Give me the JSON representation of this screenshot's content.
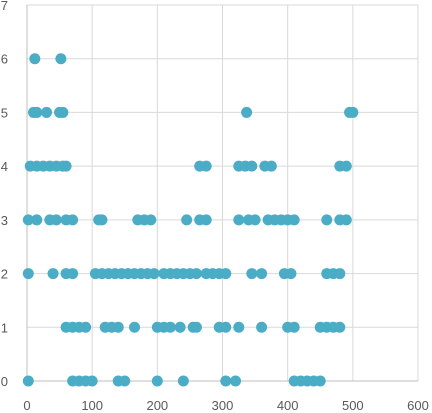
{
  "chart_data": {
    "type": "scatter",
    "title": "",
    "xlabel": "",
    "ylabel": "",
    "xlim": [
      0,
      600
    ],
    "ylim": [
      0,
      7
    ],
    "x_ticks": [
      "0",
      "100",
      "200",
      "300",
      "400",
      "500",
      "600"
    ],
    "y_ticks": [
      "0",
      "1",
      "2",
      "3",
      "4",
      "5",
      "6",
      "7"
    ],
    "grid": "vertical-and-horizontal",
    "legend": "none",
    "marker_color": "#4BACC6",
    "series": [
      {
        "points": [
          [
            2,
            0
          ],
          [
            70,
            0
          ],
          [
            80,
            0
          ],
          [
            90,
            0
          ],
          [
            100,
            0
          ],
          [
            140,
            0
          ],
          [
            150,
            0
          ],
          [
            200,
            0
          ],
          [
            240,
            0
          ],
          [
            305,
            0
          ],
          [
            320,
            0
          ],
          [
            410,
            0
          ],
          [
            420,
            0
          ],
          [
            430,
            0
          ],
          [
            440,
            0
          ],
          [
            450,
            0
          ],
          [
            60,
            1
          ],
          [
            70,
            1
          ],
          [
            80,
            1
          ],
          [
            90,
            1
          ],
          [
            120,
            1
          ],
          [
            130,
            1
          ],
          [
            140,
            1
          ],
          [
            165,
            1
          ],
          [
            200,
            1
          ],
          [
            210,
            1
          ],
          [
            220,
            1
          ],
          [
            235,
            1
          ],
          [
            255,
            1
          ],
          [
            260,
            1
          ],
          [
            295,
            1
          ],
          [
            305,
            1
          ],
          [
            325,
            1
          ],
          [
            360,
            1
          ],
          [
            400,
            1
          ],
          [
            410,
            1
          ],
          [
            450,
            1
          ],
          [
            460,
            1
          ],
          [
            470,
            1
          ],
          [
            480,
            1
          ],
          [
            2,
            2
          ],
          [
            40,
            2
          ],
          [
            60,
            2
          ],
          [
            70,
            2
          ],
          [
            105,
            2
          ],
          [
            115,
            2
          ],
          [
            125,
            2
          ],
          [
            135,
            2
          ],
          [
            145,
            2
          ],
          [
            155,
            2
          ],
          [
            165,
            2
          ],
          [
            175,
            2
          ],
          [
            185,
            2
          ],
          [
            195,
            2
          ],
          [
            210,
            2
          ],
          [
            220,
            2
          ],
          [
            230,
            2
          ],
          [
            240,
            2
          ],
          [
            250,
            2
          ],
          [
            260,
            2
          ],
          [
            275,
            2
          ],
          [
            285,
            2
          ],
          [
            295,
            2
          ],
          [
            305,
            2
          ],
          [
            345,
            2
          ],
          [
            360,
            2
          ],
          [
            395,
            2
          ],
          [
            405,
            2
          ],
          [
            460,
            2
          ],
          [
            470,
            2
          ],
          [
            480,
            2
          ],
          [
            2,
            3
          ],
          [
            15,
            3
          ],
          [
            35,
            3
          ],
          [
            45,
            3
          ],
          [
            60,
            3
          ],
          [
            70,
            3
          ],
          [
            110,
            3
          ],
          [
            115,
            3
          ],
          [
            170,
            3
          ],
          [
            180,
            3
          ],
          [
            190,
            3
          ],
          [
            245,
            3
          ],
          [
            265,
            3
          ],
          [
            275,
            3
          ],
          [
            325,
            3
          ],
          [
            340,
            3
          ],
          [
            350,
            3
          ],
          [
            370,
            3
          ],
          [
            380,
            3
          ],
          [
            390,
            3
          ],
          [
            400,
            3
          ],
          [
            410,
            3
          ],
          [
            460,
            3
          ],
          [
            480,
            3
          ],
          [
            490,
            3
          ],
          [
            5,
            4
          ],
          [
            15,
            4
          ],
          [
            25,
            4
          ],
          [
            35,
            4
          ],
          [
            45,
            4
          ],
          [
            55,
            4
          ],
          [
            60,
            4
          ],
          [
            265,
            4
          ],
          [
            275,
            4
          ],
          [
            325,
            4
          ],
          [
            335,
            4
          ],
          [
            345,
            4
          ],
          [
            365,
            4
          ],
          [
            375,
            4
          ],
          [
            480,
            4
          ],
          [
            490,
            4
          ],
          [
            10,
            5
          ],
          [
            15,
            5
          ],
          [
            30,
            5
          ],
          [
            50,
            5
          ],
          [
            55,
            5
          ],
          [
            337,
            5
          ],
          [
            495,
            5
          ],
          [
            500,
            5
          ],
          [
            12,
            6
          ],
          [
            52,
            6
          ]
        ]
      }
    ]
  }
}
